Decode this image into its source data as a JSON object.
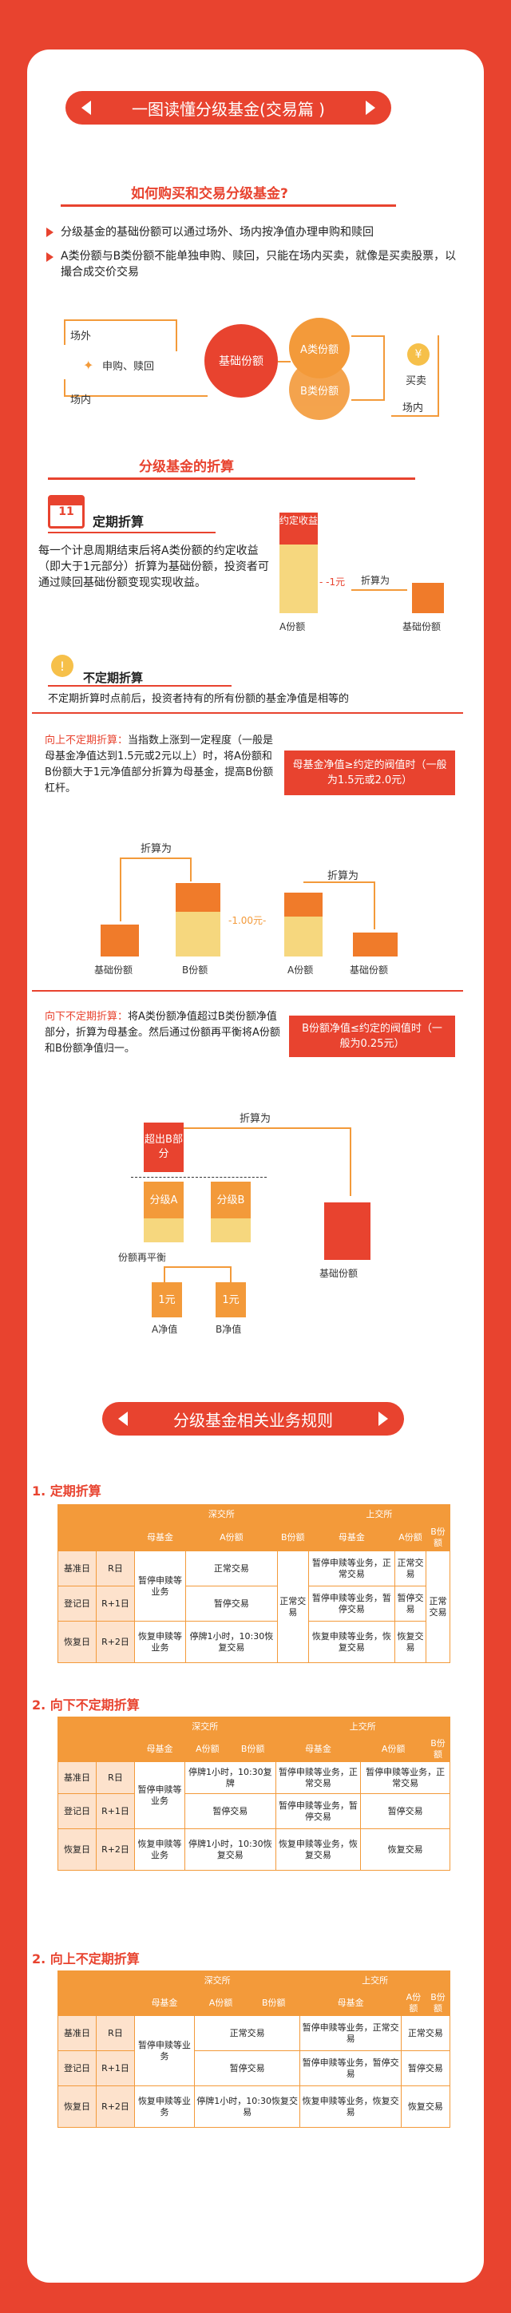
{
  "header": {
    "title": "一图读懂分级基金(交易篇 )"
  },
  "section1": {
    "title": "如何购买和交易分级基金?",
    "bullets": [
      "分级基金的基础份额可以通过场外、场内按净值办理申购和赎回",
      "A类份额与B类份额不能单独申购、赎回，只能在场内买卖，就像是买卖股票，以撮合成交价交易"
    ],
    "diagram": {
      "outside": "场外",
      "subscribe": "申购、赎回",
      "inside": "场内",
      "base": "基础份额",
      "a": "A类份额",
      "b": "B类份额",
      "trade": "买卖",
      "inside2": "场内"
    }
  },
  "section2": {
    "title": "分级基金的折算"
  },
  "periodic": {
    "title": "定期折算",
    "calendar_day": "11",
    "desc": "每一个计息周期结束后将A类份额的约定收益（即大于1元部分）折算为基础份额，投资者可通过赎回基础份额变现实现收益。",
    "agreed": "约定收益",
    "minus": "- -1元",
    "convert": "折算为",
    "a_label": "A份额",
    "base_label": "基础份额"
  },
  "irregular": {
    "title": "不定期折算",
    "desc": "不定期折算时点前后，投资者持有的所有份额的基金净值是相等的"
  },
  "up": {
    "lead": "向上不定期折算：",
    "desc": "当指数上涨到一定程度（一般是母基金净值达到1.5元或2元以上）时，将A份额和B份额大于1元净值部分折算为母基金，提高B份额杠杆。",
    "box": "母基金净值≥约定的阀值时（一般为1.5元或2.0元）",
    "convert1": "折算为",
    "convert2": "折算为",
    "base1": "基础份额",
    "b": "B份额",
    "dash": "-1.00元-",
    "a": "A份额",
    "base2": "基础份额"
  },
  "down": {
    "lead": "向下不定期折算：",
    "desc": "将A类份额净值超过B类份额净值部分，折算为母基金。然后通过份额再平衡将A份额和B份额净值归一。",
    "box": "B份额净值≤约定的阀值时（一般为0.25元）",
    "excess": "超出B部分",
    "convert": "折算为",
    "grade_a": "分级A",
    "grade_b": "分级B",
    "base": "基础份额",
    "rebalance": "份额再平衡",
    "one1": "1元",
    "one2": "1元",
    "a_nav": "A净值",
    "b_nav": "B净值"
  },
  "rules": {
    "title": "分级基金相关业务规则"
  },
  "tables": [
    {
      "title": "1. 定期折算",
      "head1": [
        "深交所",
        "上交所"
      ],
      "head2": [
        "母基金",
        "A份额",
        "B份额",
        "母基金",
        "A份额",
        "B份额"
      ],
      "rows": [
        {
          "day": "基准日",
          "t": "R日",
          "sz_mother": "暂停申赎等业务",
          "sz_a": "正常交易",
          "sz_b": "正常交易",
          "sh_mother": "暂停申赎等业务，正常交易",
          "sh_a": "正常交易",
          "sh_b": "正常交易"
        },
        {
          "day": "登记日",
          "t": "R+1日",
          "sz_a": "暂停交易",
          "sh_mother": "暂停申赎等业务，暂停交易",
          "sh_a": "暂停交易"
        },
        {
          "day": "恢复日",
          "t": "R+2日",
          "sz_mother": "恢复申赎等业务",
          "sz_a": "停牌1小时，10:30恢复交易",
          "sh_mother": "恢复申赎等业务，恢复交易",
          "sh_a": "恢复交易"
        }
      ]
    },
    {
      "title": "2. 向下不定期折算",
      "head1": [
        "深交所",
        "上交所"
      ],
      "head2": [
        "母基金",
        "A份额",
        "B份额",
        "母基金",
        "A份额",
        "B份额"
      ],
      "rows": [
        {
          "day": "基准日",
          "t": "R日",
          "sz_mother": "暂停申赎等业务",
          "sz_ab": "停牌1小时，10:30复牌",
          "sh_mother": "暂停申赎等业务，正常交易",
          "sh_ab": "暂停申赎等业务，正常交易"
        },
        {
          "day": "登记日",
          "t": "R+1日",
          "sz_ab": "暂停交易",
          "sh_mother": "暂停申赎等业务，暂停交易",
          "sh_ab": "暂停交易"
        },
        {
          "day": "恢复日",
          "t": "R+2日",
          "sz_mother": "恢复申赎等业务",
          "sz_ab": "停牌1小时，10:30恢复交易",
          "sh_mother": "恢复申赎等业务，恢复交易",
          "sh_ab": "恢复交易"
        }
      ]
    },
    {
      "title": "2. 向上不定期折算",
      "head1": [
        "深交所",
        "上交所"
      ],
      "head2": [
        "母基金",
        "A份额",
        "B份额",
        "母基金",
        "A份额",
        "B份额"
      ],
      "rows": [
        {
          "day": "基准日",
          "t": "R日",
          "sz_mother": "暂停申赎等业务",
          "sz_ab": "正常交易",
          "sh_mother": "暂停申赎等业务，正常交易",
          "sh_ab": "正常交易"
        },
        {
          "day": "登记日",
          "t": "R+1日",
          "sz_ab": "暂停交易",
          "sh_mother": "暂停申赎等业务，暂停交易",
          "sh_ab": "暂停交易"
        },
        {
          "day": "恢复日",
          "t": "R+2日",
          "sz_mother": "恢复申赎等业务",
          "sz_ab": "停牌1小时，10:30恢复交易",
          "sh_mother": "恢复申赎等业务，恢复交易",
          "sh_ab": "恢复交易"
        }
      ]
    }
  ],
  "colors": {
    "red": "#e8432f",
    "orange": "#f39a3a",
    "yellow": "#f6d77e",
    "light": "#fde2cc"
  }
}
